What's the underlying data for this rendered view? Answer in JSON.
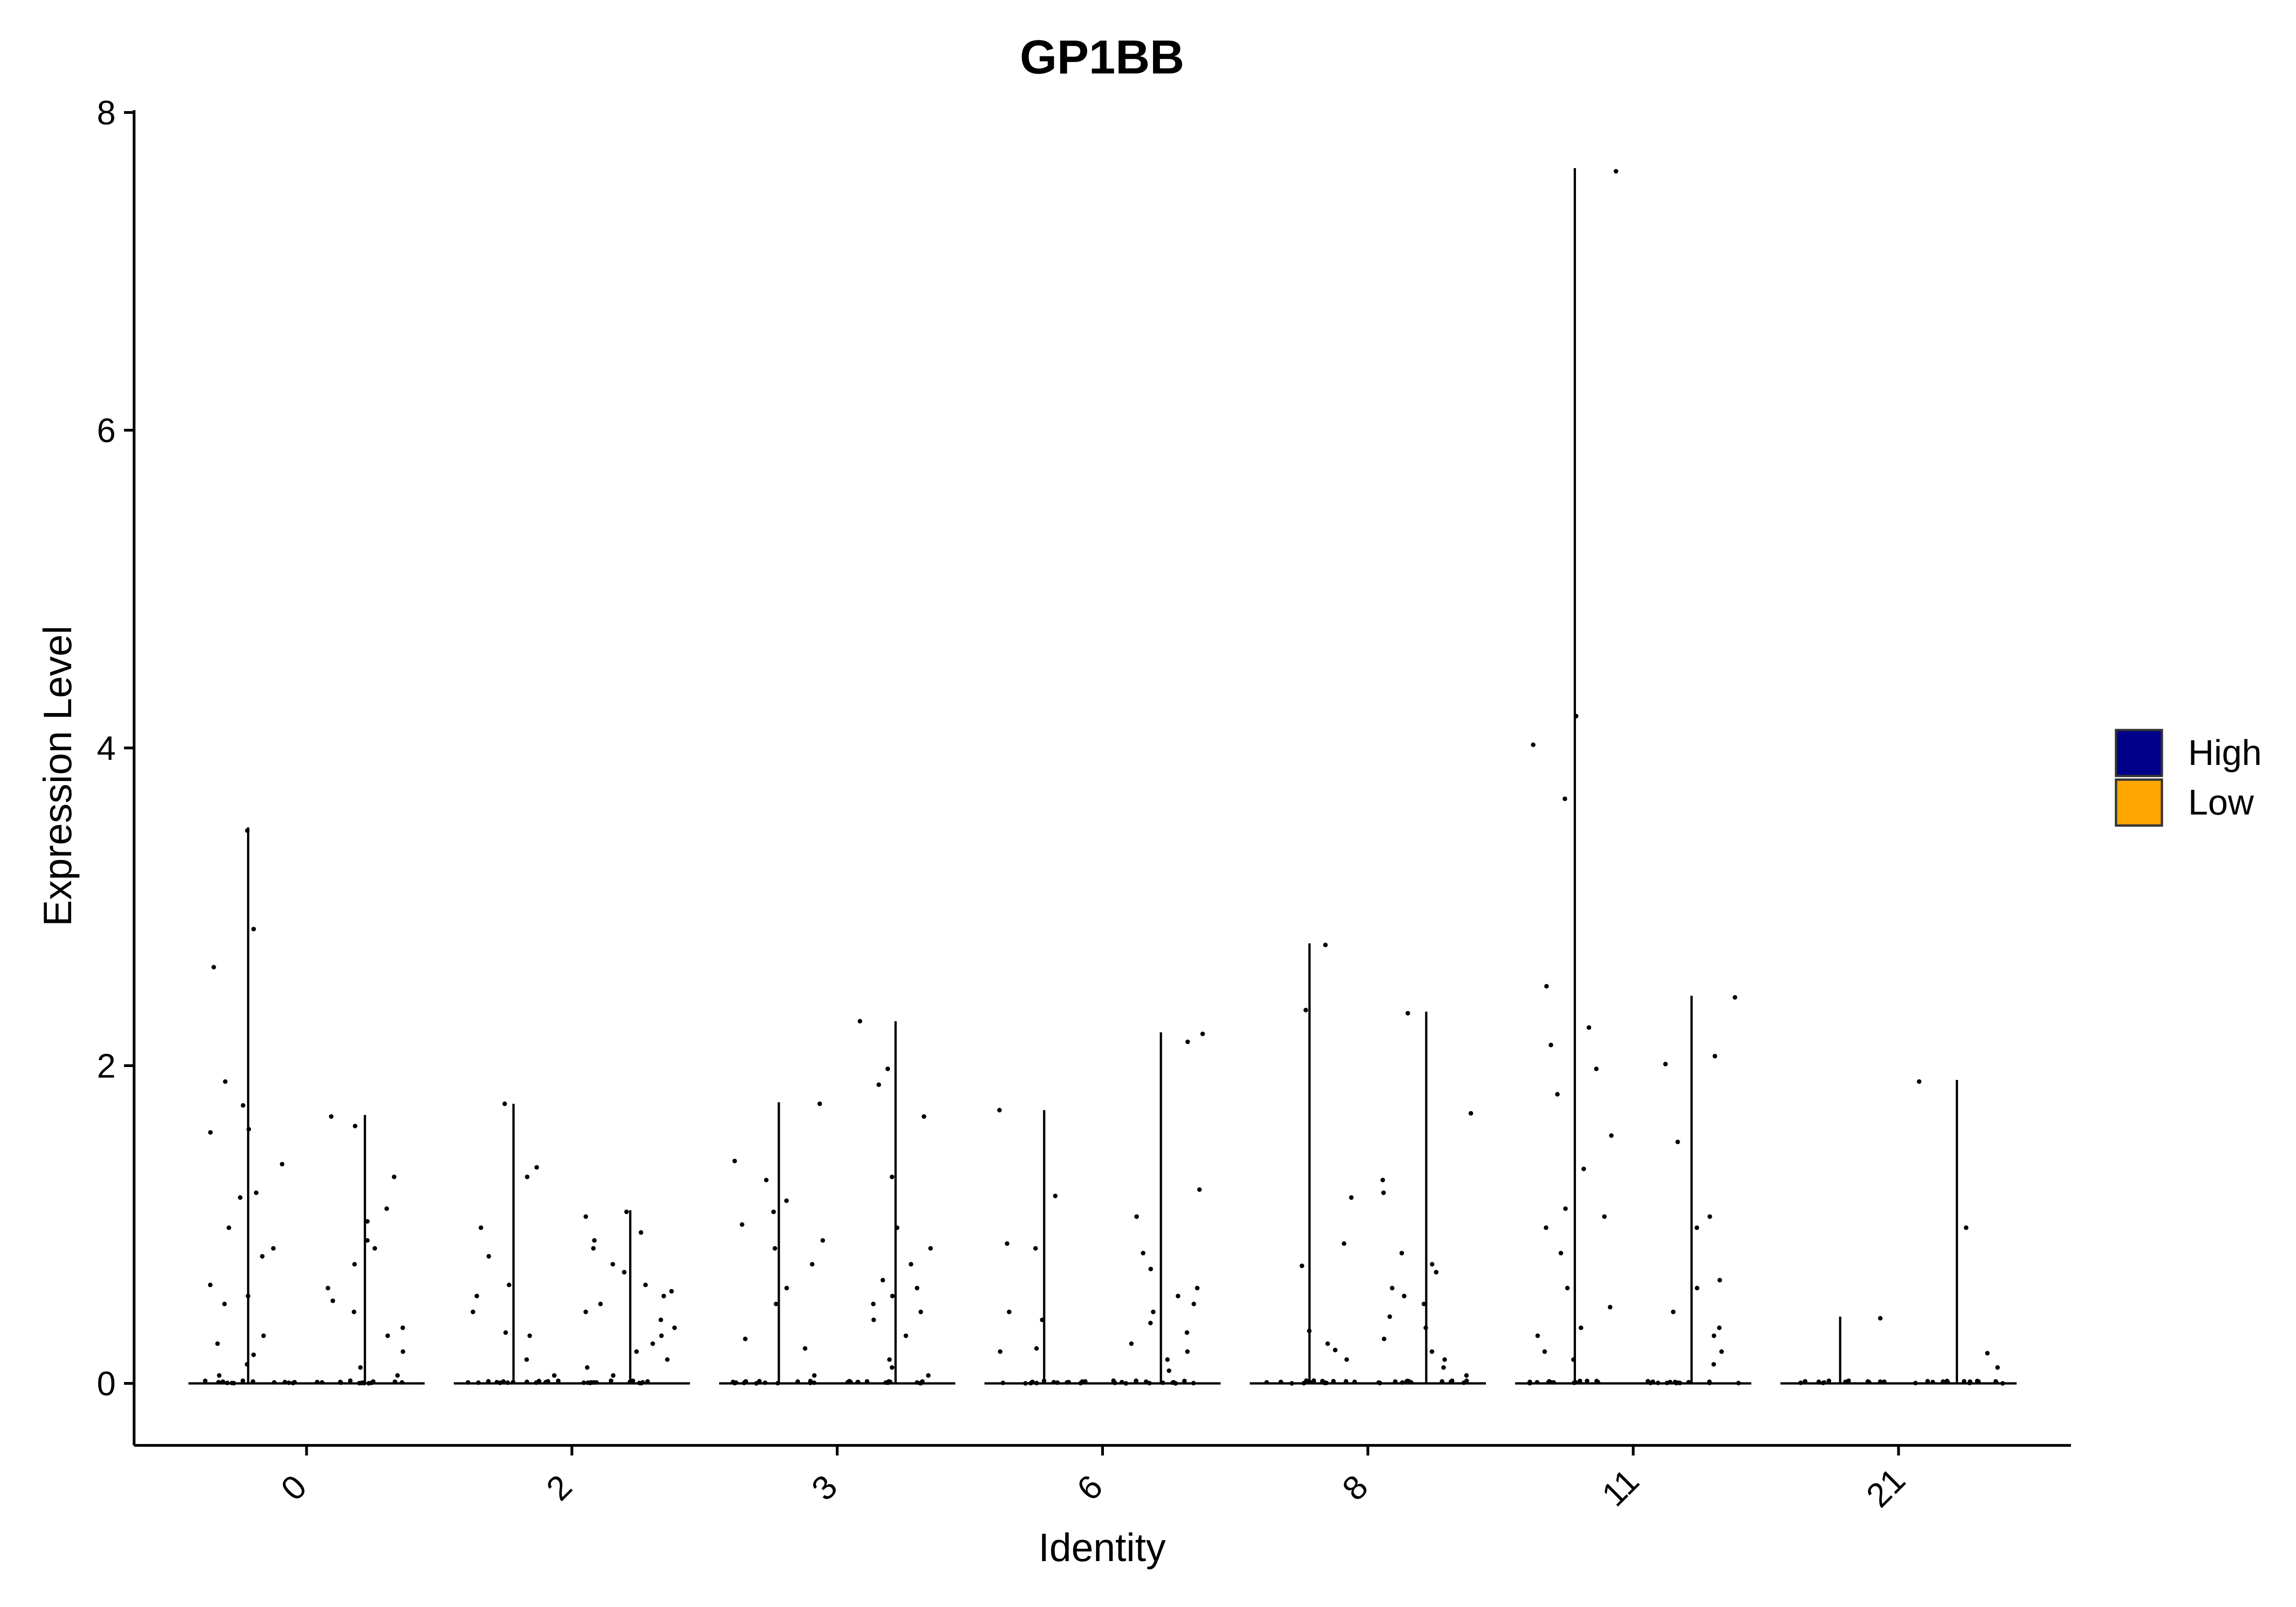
{
  "chart_data": {
    "type": "violin",
    "title": "GP1BB",
    "xlabel": "Identity",
    "ylabel": "Expression Level",
    "categories": [
      "0",
      "2",
      "3",
      "6",
      "8",
      "11",
      "21"
    ],
    "ylim": [
      -0.4,
      8
    ],
    "yticks": [
      0,
      2,
      4,
      6,
      8
    ],
    "grid": false,
    "legend_position": "right",
    "series": [
      {
        "name": "High",
        "color": "#00008B",
        "max_values": [
          3.5,
          1.76,
          1.77,
          1.72,
          2.77,
          7.65,
          0.42
        ],
        "points": [
          [
            3.48,
            2.86,
            2.62,
            1.9,
            1.75,
            1.6,
            1.58,
            1.38,
            1.2,
            1.17,
            0.98,
            0.85,
            0.8,
            0.62,
            0.55,
            0.5,
            0.3,
            0.25,
            0.18,
            0.12,
            0.05
          ],
          [
            1.76,
            1.36,
            1.3,
            0.98,
            0.8,
            0.62,
            0.55,
            0.45,
            0.32,
            0.3,
            0.15,
            0.05
          ],
          [
            1.76,
            1.4,
            1.28,
            1.15,
            1.08,
            1.0,
            0.9,
            0.85,
            0.75,
            0.6,
            0.5,
            0.28,
            0.22,
            0.05
          ],
          [
            1.72,
            1.18,
            0.88,
            0.85,
            0.45,
            0.4,
            0.22,
            0.2
          ],
          [
            2.76,
            2.35,
            1.17,
            0.88,
            0.74,
            0.33,
            0.25,
            0.21,
            0.15
          ],
          [
            7.63,
            4.2,
            4.02,
            3.68,
            2.5,
            2.24,
            2.13,
            1.98,
            1.82,
            1.56,
            1.35,
            1.1,
            1.05,
            0.98,
            0.82,
            0.6,
            0.48,
            0.35,
            0.3,
            0.2,
            0.15
          ],
          [
            0.41
          ]
        ]
      },
      {
        "name": "Low",
        "color": "#FFA500",
        "max_values": [
          1.69,
          1.09,
          2.28,
          2.21,
          2.34,
          2.44,
          1.91
        ],
        "points": [
          [
            1.68,
            1.62,
            1.3,
            1.1,
            1.02,
            0.9,
            0.85,
            0.75,
            0.6,
            0.52,
            0.45,
            0.35,
            0.3,
            0.2,
            0.1,
            0.05
          ],
          [
            1.08,
            1.05,
            0.95,
            0.9,
            0.85,
            0.75,
            0.7,
            0.62,
            0.58,
            0.55,
            0.5,
            0.45,
            0.4,
            0.35,
            0.3,
            0.25,
            0.2,
            0.15,
            0.1,
            0.05
          ],
          [
            2.28,
            1.98,
            1.88,
            1.68,
            1.3,
            0.98,
            0.85,
            0.75,
            0.65,
            0.6,
            0.55,
            0.5,
            0.45,
            0.4,
            0.3,
            0.15,
            0.1,
            0.05
          ],
          [
            2.2,
            2.15,
            1.22,
            1.05,
            0.82,
            0.72,
            0.6,
            0.55,
            0.5,
            0.45,
            0.38,
            0.32,
            0.25,
            0.2,
            0.15,
            0.08
          ],
          [
            2.33,
            1.7,
            1.28,
            1.2,
            0.82,
            0.75,
            0.7,
            0.6,
            0.55,
            0.5,
            0.42,
            0.35,
            0.28,
            0.2,
            0.15,
            0.1,
            0.05
          ],
          [
            2.43,
            2.06,
            2.01,
            1.52,
            1.05,
            0.98,
            0.65,
            0.6,
            0.45,
            0.35,
            0.3,
            0.2,
            0.12
          ],
          [
            1.9,
            0.98,
            0.19,
            0.1
          ]
        ]
      }
    ]
  }
}
